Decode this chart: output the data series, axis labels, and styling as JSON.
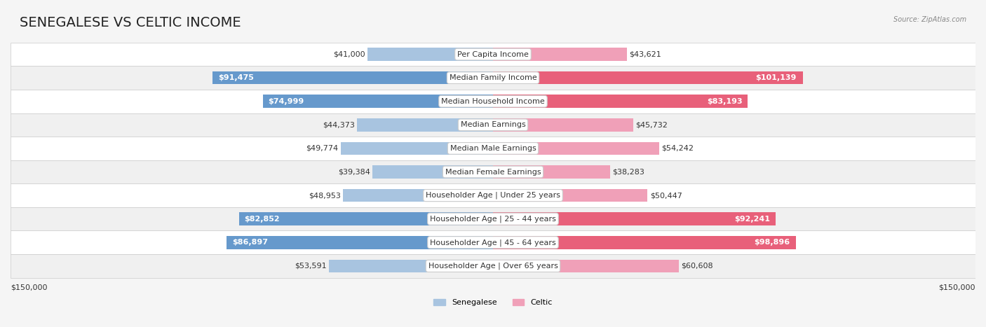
{
  "title": "SENEGALESE VS CELTIC INCOME",
  "source": "Source: ZipAtlas.com",
  "categories": [
    "Per Capita Income",
    "Median Family Income",
    "Median Household Income",
    "Median Earnings",
    "Median Male Earnings",
    "Median Female Earnings",
    "Householder Age | Under 25 years",
    "Householder Age | 25 - 44 years",
    "Householder Age | 45 - 64 years",
    "Householder Age | Over 65 years"
  ],
  "senegalese_values": [
    41000,
    91475,
    74999,
    44373,
    49774,
    39384,
    48953,
    82852,
    86897,
    53591
  ],
  "celtic_values": [
    43621,
    101139,
    83193,
    45732,
    54242,
    38283,
    50447,
    92241,
    98896,
    60608
  ],
  "senegalese_labels": [
    "$41,000",
    "$91,475",
    "$74,999",
    "$44,373",
    "$49,774",
    "$39,384",
    "$48,953",
    "$82,852",
    "$86,897",
    "$53,591"
  ],
  "celtic_labels": [
    "$43,621",
    "$101,139",
    "$83,193",
    "$45,732",
    "$54,242",
    "$38,283",
    "$50,447",
    "$92,241",
    "$98,896",
    "$60,608"
  ],
  "max_value": 150000,
  "senegalese_color_light": "#a8c4e0",
  "senegalese_color_dark": "#6699cc",
  "celtic_color_light": "#f0a0b8",
  "celtic_color_dark": "#e8607a",
  "threshold": 70000,
  "bar_height": 0.55,
  "background_color": "#f5f5f5",
  "row_bg_color": "#ffffff",
  "alt_row_bg_color": "#f0f0f0",
  "xlabel_left": "$150,000",
  "xlabel_right": "$150,000",
  "legend_senegalese": "Senegalese",
  "legend_celtic": "Celtic",
  "title_fontsize": 14,
  "label_fontsize": 8,
  "category_fontsize": 8
}
